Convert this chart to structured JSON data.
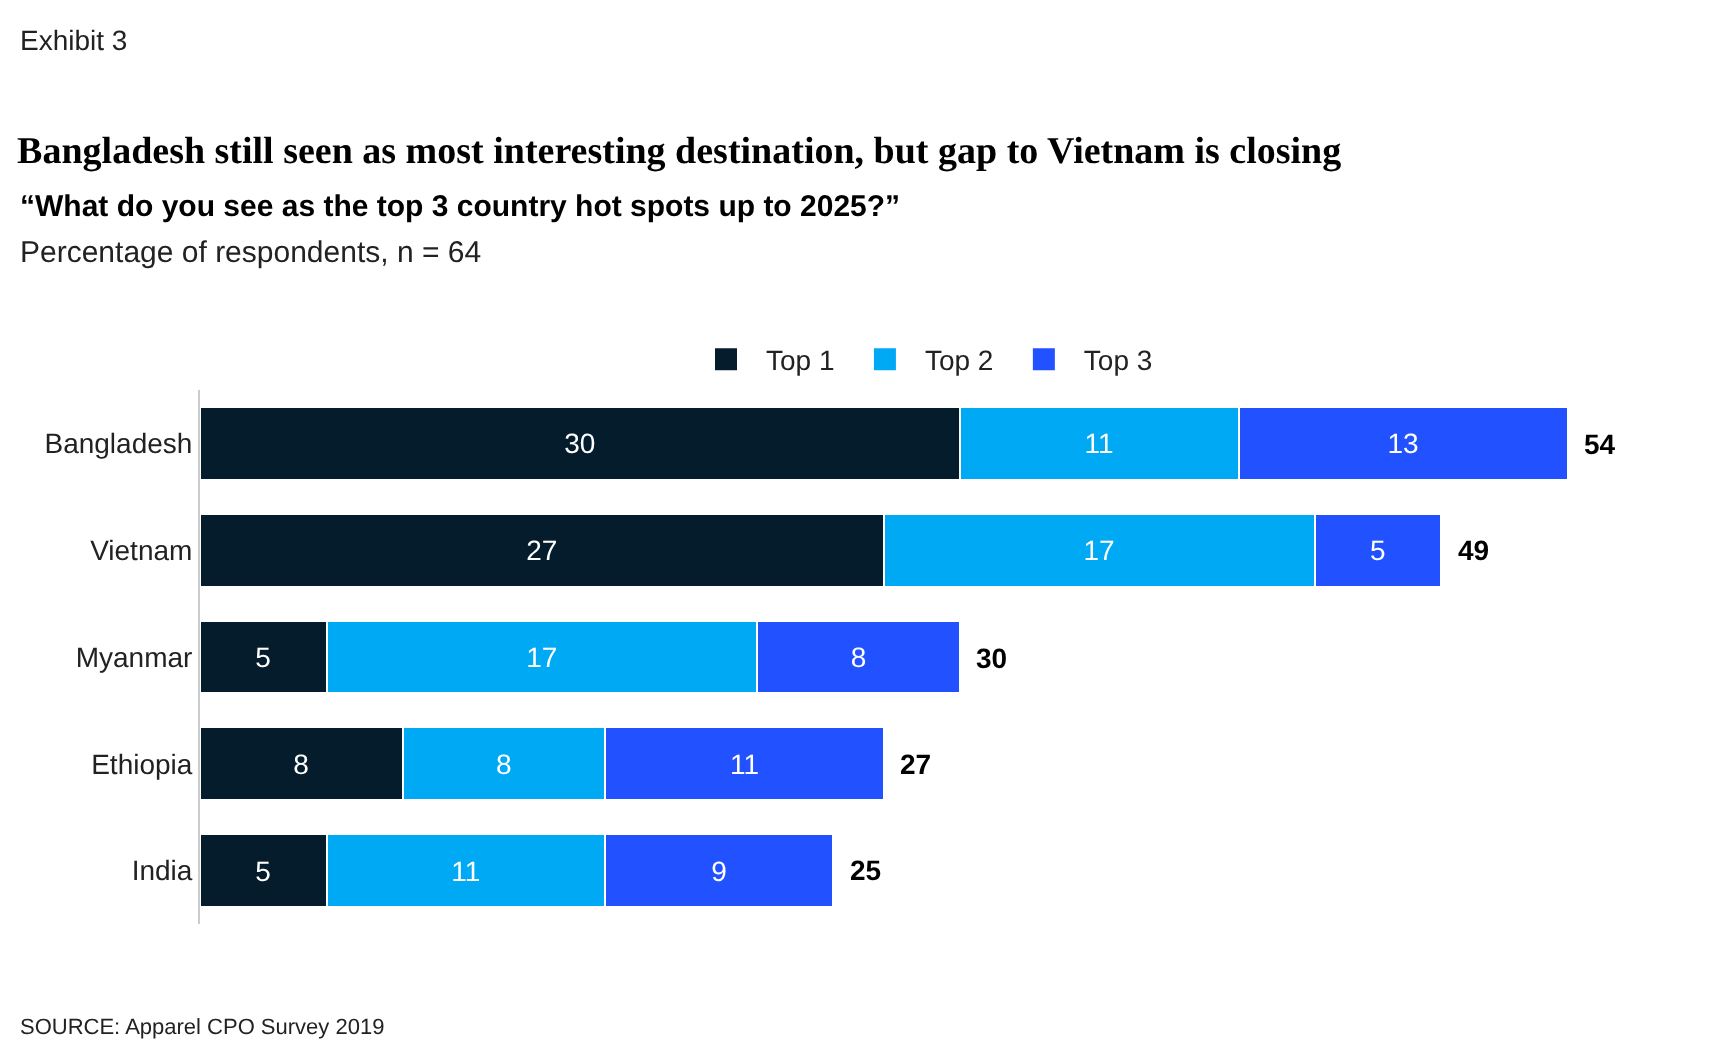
{
  "chart_data": {
    "type": "bar",
    "orientation": "horizontal",
    "stacked": true,
    "title": "Bangladesh still seen as most interesting destination, but gap to Vietnam is closing",
    "subtitle": "“What do you see as the top 3 country hot spots up to 2025?”",
    "categories": [
      "Bangladesh",
      "Vietnam",
      "Myanmar",
      "Ethiopia",
      "India"
    ],
    "series": [
      {
        "name": "Top 1",
        "color": "#051c2c",
        "values": [
          30,
          27,
          5,
          8,
          5
        ]
      },
      {
        "name": "Top 2",
        "color": "#00a9f4",
        "values": [
          11,
          17,
          17,
          8,
          11
        ]
      },
      {
        "name": "Top 3",
        "color": "#2251ff",
        "values": [
          13,
          5,
          8,
          11,
          9
        ]
      }
    ],
    "totals": [
      "54",
      "49",
      "30",
      "27",
      "25"
    ],
    "data_labels": true,
    "legend": "top",
    "grid": false,
    "annotations": [
      "Exhibit 3",
      "Percentage of respondents, n = 64",
      "SOURCE: Apparel CPO Survey 2019"
    ]
  }
}
